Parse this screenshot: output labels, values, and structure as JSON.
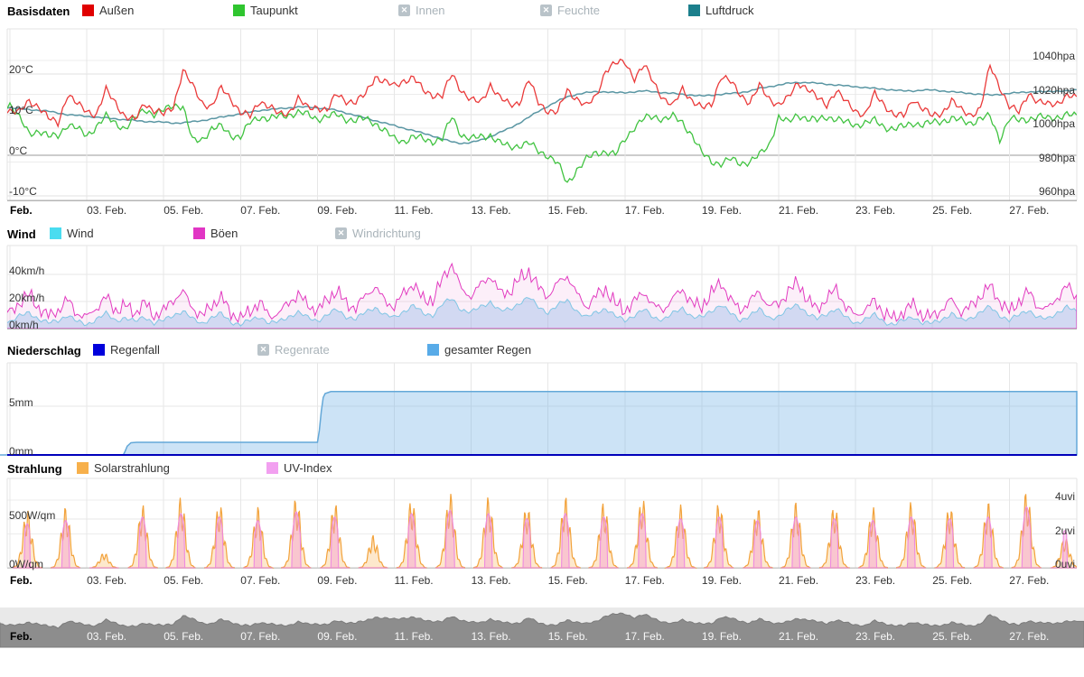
{
  "sections": [
    {
      "title": "Basisdaten",
      "legend": [
        {
          "label": "Außen",
          "color": "#e00000",
          "enabled": true
        },
        {
          "label": "Taupunkt",
          "color": "#2fc52f",
          "enabled": true
        },
        {
          "label": "Innen",
          "enabled": false
        },
        {
          "label": "Feuchte",
          "enabled": false
        },
        {
          "label": "Luftdruck",
          "color": "#1b7f8c",
          "enabled": true
        }
      ]
    },
    {
      "title": "Wind",
      "legend": [
        {
          "label": "Wind",
          "color": "#49dcf0",
          "enabled": true
        },
        {
          "label": "Böen",
          "color": "#e136c4",
          "enabled": true
        },
        {
          "label": "Windrichtung",
          "enabled": false
        }
      ]
    },
    {
      "title": "Niederschlag",
      "legend": [
        {
          "label": "Regenfall",
          "color": "#0000dc",
          "enabled": true
        },
        {
          "label": "Regenrate",
          "enabled": false
        },
        {
          "label": "gesamter Regen",
          "color": "#58abe8",
          "enabled": true
        }
      ]
    },
    {
      "title": "Strahlung",
      "legend": [
        {
          "label": "Solarstrahlung",
          "color": "#f7b04b",
          "enabled": true
        },
        {
          "label": "UV-Index",
          "color": "#f2a0f0",
          "enabled": true
        }
      ]
    }
  ],
  "xticks": [
    {
      "day": 1,
      "label": "Feb.",
      "bold": true
    },
    {
      "day": 3,
      "label": "03. Feb."
    },
    {
      "day": 5,
      "label": "05. Feb."
    },
    {
      "day": 7,
      "label": "07. Feb."
    },
    {
      "day": 9,
      "label": "09. Feb."
    },
    {
      "day": 11,
      "label": "11. Feb."
    },
    {
      "day": 13,
      "label": "13. Feb."
    },
    {
      "day": 15,
      "label": "15. Feb."
    },
    {
      "day": 17,
      "label": "17. Feb."
    },
    {
      "day": 19,
      "label": "19. Feb."
    },
    {
      "day": 21,
      "label": "21. Feb."
    },
    {
      "day": 23,
      "label": "23. Feb."
    },
    {
      "day": 25,
      "label": "25. Feb."
    },
    {
      "day": 27,
      "label": "27. Feb."
    }
  ],
  "chart_data": [
    {
      "id": "basisdaten",
      "type": "line",
      "title": "Basisdaten",
      "x_unit": "day of February",
      "x0": 0.5,
      "x_step": 0.25,
      "yaxis_left": {
        "unit": "°C",
        "ticks": [
          20,
          10,
          0,
          -10
        ],
        "labels": [
          "20°C",
          "10°C",
          "0°C",
          "-10°C"
        ]
      },
      "yaxis_right": {
        "unit": "hpa",
        "ticks": [
          1040,
          1020,
          1000,
          980,
          960
        ],
        "labels": [
          "1040hpa",
          "1020hpa",
          "1000hpa",
          "980hpa",
          "960hpa"
        ]
      },
      "series": [
        {
          "name": "Außen",
          "unit": "°C",
          "color": "#ea3a3a",
          "values": [
            12.5,
            11.8,
            11,
            10.5,
            13.5,
            12,
            9,
            8,
            15,
            12.5,
            11,
            10,
            16,
            13,
            9.5,
            8.5,
            13,
            11,
            10,
            12,
            21,
            17,
            13,
            12,
            16.5,
            14,
            10.5,
            9.5,
            13.5,
            12,
            10,
            10.5,
            14,
            11.5,
            12,
            11,
            15,
            13.5,
            13,
            15,
            19.5,
            18,
            17,
            18.5,
            19,
            16,
            15,
            14.5,
            20,
            16,
            13.5,
            13,
            17.5,
            14,
            12.5,
            13,
            18.5,
            13,
            11,
            10.5,
            16,
            14,
            12,
            14.5,
            21,
            22.5,
            23,
            19,
            22,
            18,
            14,
            12,
            16.5,
            13.5,
            11.5,
            12.5,
            19.5,
            18,
            15,
            13,
            17,
            14,
            12.5,
            14,
            18,
            16.5,
            14,
            12.5,
            16,
            13,
            11,
            10,
            15,
            12.5,
            10,
            9.5,
            14,
            11.5,
            9.5,
            10.5,
            13.5,
            11,
            10,
            11.5,
            22,
            17,
            12,
            10.5,
            15.5,
            13,
            12.5,
            13,
            14.5,
            14
          ]
        },
        {
          "name": "Taupunkt",
          "unit": "°C",
          "color": "#41c341",
          "values": [
            11.5,
            12,
            12.5,
            9,
            5.5,
            6,
            4.5,
            5,
            7.5,
            6.5,
            5,
            7,
            9.5,
            8,
            6.5,
            9,
            11.5,
            10,
            11,
            12.5,
            12,
            3.5,
            4,
            6.5,
            7,
            5,
            4.5,
            8,
            9.5,
            9,
            9.5,
            10,
            10.5,
            10,
            9,
            9.5,
            10,
            9,
            8.5,
            9,
            8,
            6,
            4,
            3.5,
            4.5,
            4,
            3.5,
            4,
            9.5,
            5,
            4,
            4.5,
            5,
            3,
            2,
            2.5,
            3,
            1,
            0,
            -2,
            -7,
            -3.5,
            -1,
            0.5,
            1,
            0,
            4,
            7,
            9,
            9.5,
            9,
            9.5,
            8,
            5,
            0.5,
            -1.5,
            -2,
            -1,
            -2,
            -1.5,
            0,
            2.5,
            9.5,
            8,
            10,
            9,
            8.5,
            9.5,
            9,
            8,
            7.5,
            8,
            8.5,
            7,
            6.5,
            7,
            8,
            7.5,
            8,
            8.5,
            9,
            8.5,
            8,
            9,
            9.5,
            4,
            9,
            8.5,
            9,
            9.5,
            9,
            9.5,
            10,
            9.5
          ]
        },
        {
          "name": "Luftdruck",
          "unit": "hpa",
          "color": "#5a96a3",
          "values": [
            1013,
            1012.5,
            1012,
            1011.5,
            1011,
            1010.5,
            1010,
            1009,
            1008,
            1007.5,
            1007,
            1006.5,
            1006,
            1005.5,
            1005,
            1004.5,
            1004,
            1003.8,
            1003.5,
            1003,
            1003.2,
            1003.8,
            1004.5,
            1005.5,
            1006.5,
            1007.5,
            1008.5,
            1009.5,
            1010.5,
            1011,
            1011.5,
            1012,
            1012.5,
            1012.5,
            1012,
            1011.5,
            1010.5,
            1009,
            1007.5,
            1006,
            1004.5,
            1003,
            1001.5,
            1000,
            998.5,
            997,
            995.5,
            993.5,
            992,
            991,
            991.5,
            993,
            995,
            997.5,
            1000,
            1003,
            1006.5,
            1010,
            1013,
            1016,
            1018.5,
            1020,
            1021,
            1021.5,
            1021.5,
            1021,
            1021,
            1021.5,
            1022,
            1021.5,
            1021,
            1020.5,
            1020,
            1019.5,
            1019,
            1019.5,
            1020,
            1020.5,
            1021,
            1022,
            1023.5,
            1024.5,
            1025.5,
            1026.5,
            1027,
            1027,
            1026.5,
            1026,
            1025.5,
            1025,
            1024.5,
            1024,
            1023.5,
            1023,
            1022.5,
            1022,
            1022,
            1022.5,
            1022.5,
            1022,
            1021.5,
            1021,
            1020.5,
            1020,
            1019.5,
            1020,
            1020.5,
            1021,
            1021.5,
            1021.5,
            1021.5,
            1022,
            1022,
            1022.5
          ]
        }
      ]
    },
    {
      "id": "wind",
      "type": "area",
      "title": "Wind",
      "x0": 0.5,
      "x_step": 0.25,
      "yaxis_left": {
        "unit": "km/h",
        "ticks": [
          40,
          20,
          0
        ],
        "labels": [
          "40km/h",
          "20km/h",
          "0km/h"
        ]
      },
      "series": [
        {
          "name": "Wind",
          "unit": "km/h",
          "color": "#6fd0e8",
          "fill": "#cfe6f6",
          "values": [
            6,
            8,
            5,
            9,
            12,
            7,
            4,
            6,
            10,
            5,
            3,
            7,
            11,
            6,
            8,
            5,
            9,
            4,
            6,
            10,
            13,
            7,
            4,
            8,
            11,
            5,
            3,
            6,
            9,
            4,
            5,
            9,
            12,
            8,
            6,
            10,
            14,
            9,
            7,
            12,
            16,
            10,
            8,
            13,
            17,
            11,
            10,
            18,
            22,
            14,
            12,
            16,
            20,
            13,
            14,
            19,
            23,
            16,
            12,
            17,
            21,
            13,
            8,
            12,
            15,
            9,
            6,
            10,
            14,
            8,
            7,
            11,
            15,
            9,
            8,
            13,
            18,
            11,
            6,
            10,
            14,
            8,
            9,
            14,
            18,
            11,
            7,
            11,
            15,
            8,
            4,
            7,
            10,
            5,
            3,
            6,
            9,
            4,
            4,
            7,
            11,
            6,
            8,
            12,
            16,
            10,
            6,
            10,
            14,
            8,
            7,
            12,
            16,
            12
          ]
        },
        {
          "name": "Böen",
          "unit": "km/h",
          "color": "#e23bc0",
          "values": [
            12,
            16,
            10,
            18,
            24,
            14,
            8,
            12,
            20,
            10,
            7,
            14,
            22,
            12,
            16,
            10,
            18,
            8,
            12,
            20,
            26,
            14,
            8,
            16,
            22,
            10,
            6,
            12,
            18,
            8,
            10,
            18,
            24,
            16,
            12,
            20,
            27,
            17,
            14,
            23,
            30,
            19,
            15,
            25,
            32,
            20,
            20,
            35,
            47,
            27,
            23,
            31,
            38,
            25,
            26,
            35,
            41,
            29,
            23,
            32,
            38,
            24,
            15,
            23,
            28,
            17,
            12,
            19,
            26,
            15,
            13,
            21,
            28,
            17,
            15,
            25,
            33,
            20,
            12,
            19,
            26,
            15,
            17,
            26,
            33,
            20,
            13,
            21,
            28,
            15,
            8,
            13,
            19,
            10,
            6,
            11,
            17,
            8,
            8,
            13,
            20,
            11,
            15,
            23,
            30,
            19,
            11,
            19,
            26,
            15,
            13,
            22,
            30,
            22
          ]
        }
      ]
    },
    {
      "id": "niederschlag",
      "type": "area",
      "title": "Niederschlag",
      "yaxis_left": {
        "unit": "mm",
        "ticks": [
          5,
          0
        ],
        "labels": [
          "5mm",
          "0mm"
        ]
      },
      "series": [
        {
          "name": "Regenfall",
          "unit": "mm",
          "color": "#0000bb",
          "constant": 0
        },
        {
          "name": "gesamter Regen",
          "unit": "mm",
          "color": "#64a8d8",
          "points": [
            [
              0.5,
              0
            ],
            [
              3.95,
              0
            ],
            [
              4.0,
              0.4
            ],
            [
              4.05,
              0.9
            ],
            [
              4.15,
              1.25
            ],
            [
              4.3,
              1.3
            ],
            [
              9.0,
              1.3
            ],
            [
              9.05,
              2.5
            ],
            [
              9.1,
              4.5
            ],
            [
              9.15,
              5.9
            ],
            [
              9.2,
              6.3
            ],
            [
              9.35,
              6.5
            ],
            [
              28.75,
              6.5
            ]
          ]
        }
      ]
    },
    {
      "id": "strahlung",
      "type": "daily-spikes",
      "title": "Strahlung",
      "yaxis_left": {
        "unit": "W/qm",
        "ticks": [
          500,
          0
        ],
        "labels": [
          "500W/qm",
          "0W/qm"
        ]
      },
      "yaxis_right": {
        "unit": "uvi",
        "ticks": [
          4,
          2,
          0
        ],
        "labels": [
          "4uvi",
          "2uvi",
          "0uvi"
        ]
      },
      "days_of_feb": [
        1,
        2,
        3,
        4,
        5,
        6,
        7,
        8,
        9,
        10,
        11,
        12,
        13,
        14,
        15,
        16,
        17,
        18,
        19,
        20,
        21,
        22,
        23,
        24,
        25,
        26,
        27,
        28
      ],
      "series": [
        {
          "name": "Solarstrahlung",
          "unit": "W/qm",
          "color": "#f2a23b",
          "peak_values": [
            580,
            600,
            150,
            620,
            700,
            640,
            600,
            700,
            650,
            320,
            680,
            740,
            700,
            620,
            700,
            650,
            700,
            620,
            650,
            600,
            650,
            620,
            600,
            650,
            620,
            650,
            760,
            300
          ]
        },
        {
          "name": "UV-Index",
          "unit": "uvi",
          "color": "#ee8ae0",
          "peak_values": [
            2.6,
            2.8,
            0.8,
            3.0,
            3.2,
            3.0,
            2.8,
            3.3,
            3.0,
            1.5,
            3.2,
            3.4,
            3.2,
            2.9,
            3.2,
            3.0,
            3.2,
            2.9,
            3.0,
            2.8,
            3.0,
            2.9,
            2.8,
            3.0,
            2.9,
            3.0,
            3.6,
            2.2
          ]
        }
      ]
    }
  ],
  "navigator": {
    "background": "#e9e9e9",
    "area_color": "#8d8d8d",
    "edge_color": "#7b7b7b",
    "label_color": "#f7f7f7"
  }
}
